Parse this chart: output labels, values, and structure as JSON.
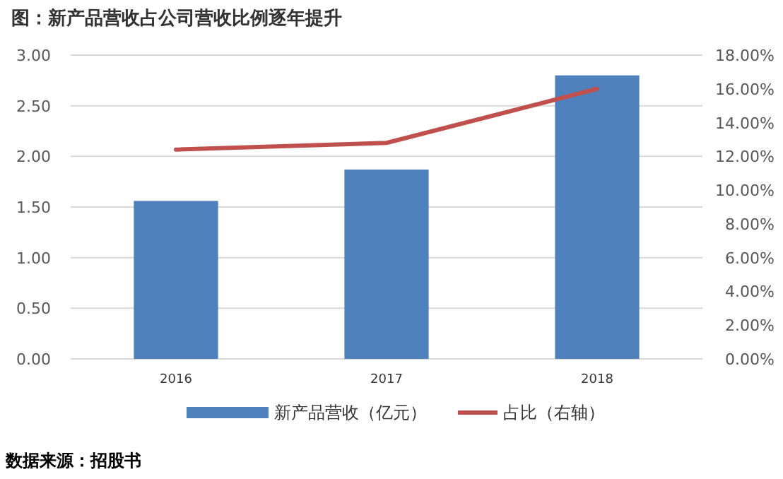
{
  "chart_data": {
    "type": "bar",
    "title": "图：新产品营收占公司营收比例逐年提升",
    "categories": [
      "2016",
      "2017",
      "2018"
    ],
    "series": [
      {
        "name": "新产品营收（亿元）",
        "color": "#4f81bd",
        "values": [
          1.56,
          1.87,
          2.8
        ]
      },
      {
        "name": "占比（右轴）",
        "type": "line",
        "axis": "y2",
        "color": "#c0504d",
        "values": [
          12.4,
          12.8,
          16.0
        ]
      }
    ],
    "ylim": [
      0,
      3
    ],
    "yticks": [
      {
        "value": 0,
        "label": "0.00"
      },
      {
        "value": 0.5,
        "label": "0.50"
      },
      {
        "value": 1,
        "label": "1.00"
      },
      {
        "value": 1.5,
        "label": "1.50"
      },
      {
        "value": 2,
        "label": "2.00"
      },
      {
        "value": 2.5,
        "label": "2.50"
      },
      {
        "value": 3,
        "label": "3.00"
      }
    ],
    "y2lim": [
      0,
      18
    ],
    "y2ticks": [
      {
        "value": 0,
        "label": "0.00%"
      },
      {
        "value": 2,
        "label": "2.00%"
      },
      {
        "value": 4,
        "label": "4.00%"
      },
      {
        "value": 6,
        "label": "6.00%"
      },
      {
        "value": 8,
        "label": "8.00%"
      },
      {
        "value": 10,
        "label": "10.00%"
      },
      {
        "value": 12,
        "label": "12.00%"
      },
      {
        "value": 14,
        "label": "14.00%"
      },
      {
        "value": 16,
        "label": "16.00%"
      },
      {
        "value": 18,
        "label": "18.00%"
      }
    ],
    "grid": "y",
    "legend": "bottom",
    "marker": "none",
    "annotations": [
      "数据来源：招股书"
    ]
  }
}
